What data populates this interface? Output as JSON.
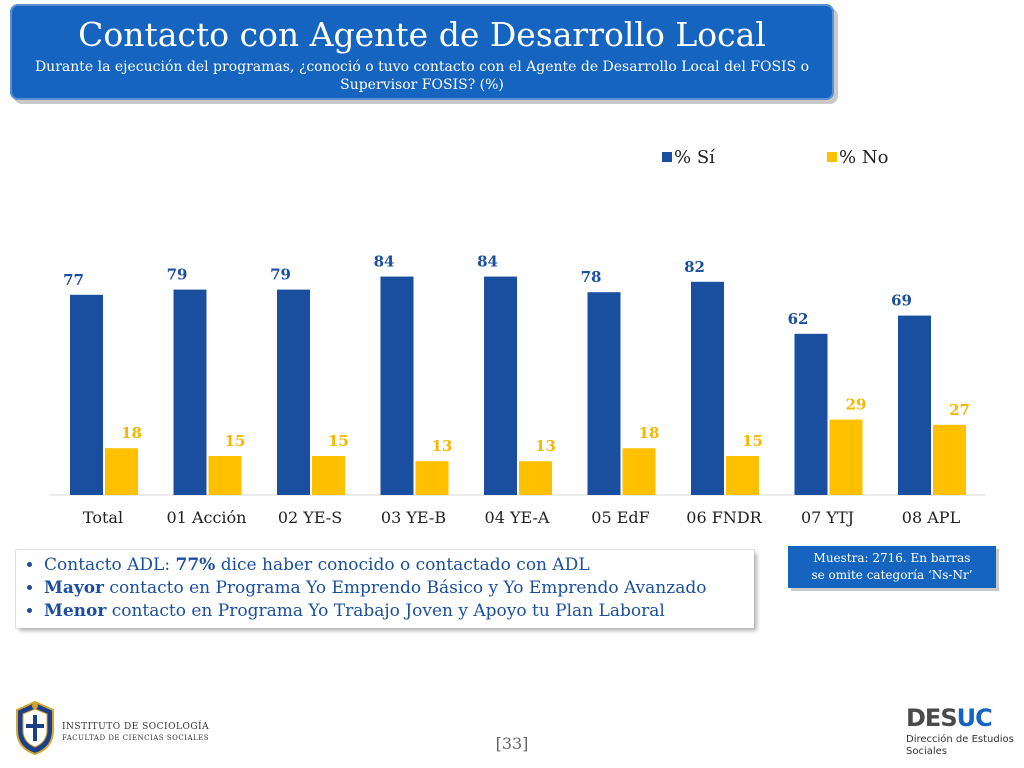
{
  "header": {
    "title": "Contacto con Agente de Desarrollo Local",
    "subtitle": "Durante la ejecución del programas, ¿conoció o tuvo contacto con el Agente de Desarrollo Local del FOSIS o Supervisor FOSIS? (%)"
  },
  "chart_data": {
    "type": "bar",
    "categories": [
      "Total",
      "01 Acción",
      "02 YE-S",
      "03 YE-B",
      "04 YE-A",
      "05 EdF",
      "06 FNDR",
      "07 YTJ",
      "08 APL"
    ],
    "series": [
      {
        "name": "% Sí",
        "values": [
          77,
          79,
          79,
          84,
          84,
          78,
          82,
          62,
          69
        ],
        "color": "#1a4fa0"
      },
      {
        "name": "% No",
        "values": [
          18,
          15,
          15,
          13,
          13,
          18,
          15,
          29,
          27
        ],
        "color": "#ffc000"
      }
    ],
    "legend_position": "top-right",
    "grid": false,
    "ylim": [
      0,
      100
    ]
  },
  "notes": [
    {
      "prefix": "Contacto ADL: ",
      "bold": "77%",
      "suffix": " dice haber conocido o contactado con ADL"
    },
    {
      "prefix": "",
      "bold": "Mayor",
      "suffix": " contacto en Programa Yo Emprendo Básico y Yo Emprendo Avanzado"
    },
    {
      "prefix": "",
      "bold": "Menor",
      "suffix": " contacto en Programa Yo Trabajo Joven y Apoyo tu Plan Laboral"
    }
  ],
  "muestra": {
    "line1": "Muestra: 2716. En barras",
    "line2": "se omite categoría ‘Ns-Nr’"
  },
  "page_number": "[33]",
  "footer": {
    "institute_line1": "INSTITUTO DE SOCIOLOGÍA",
    "institute_line2": "FACULTAD DE CIENCIAS SOCIALES",
    "desuc_a": "DES",
    "desuc_b": "UC",
    "desuc_sub1": "Dirección de Estudios",
    "desuc_sub2": "Sociales"
  }
}
